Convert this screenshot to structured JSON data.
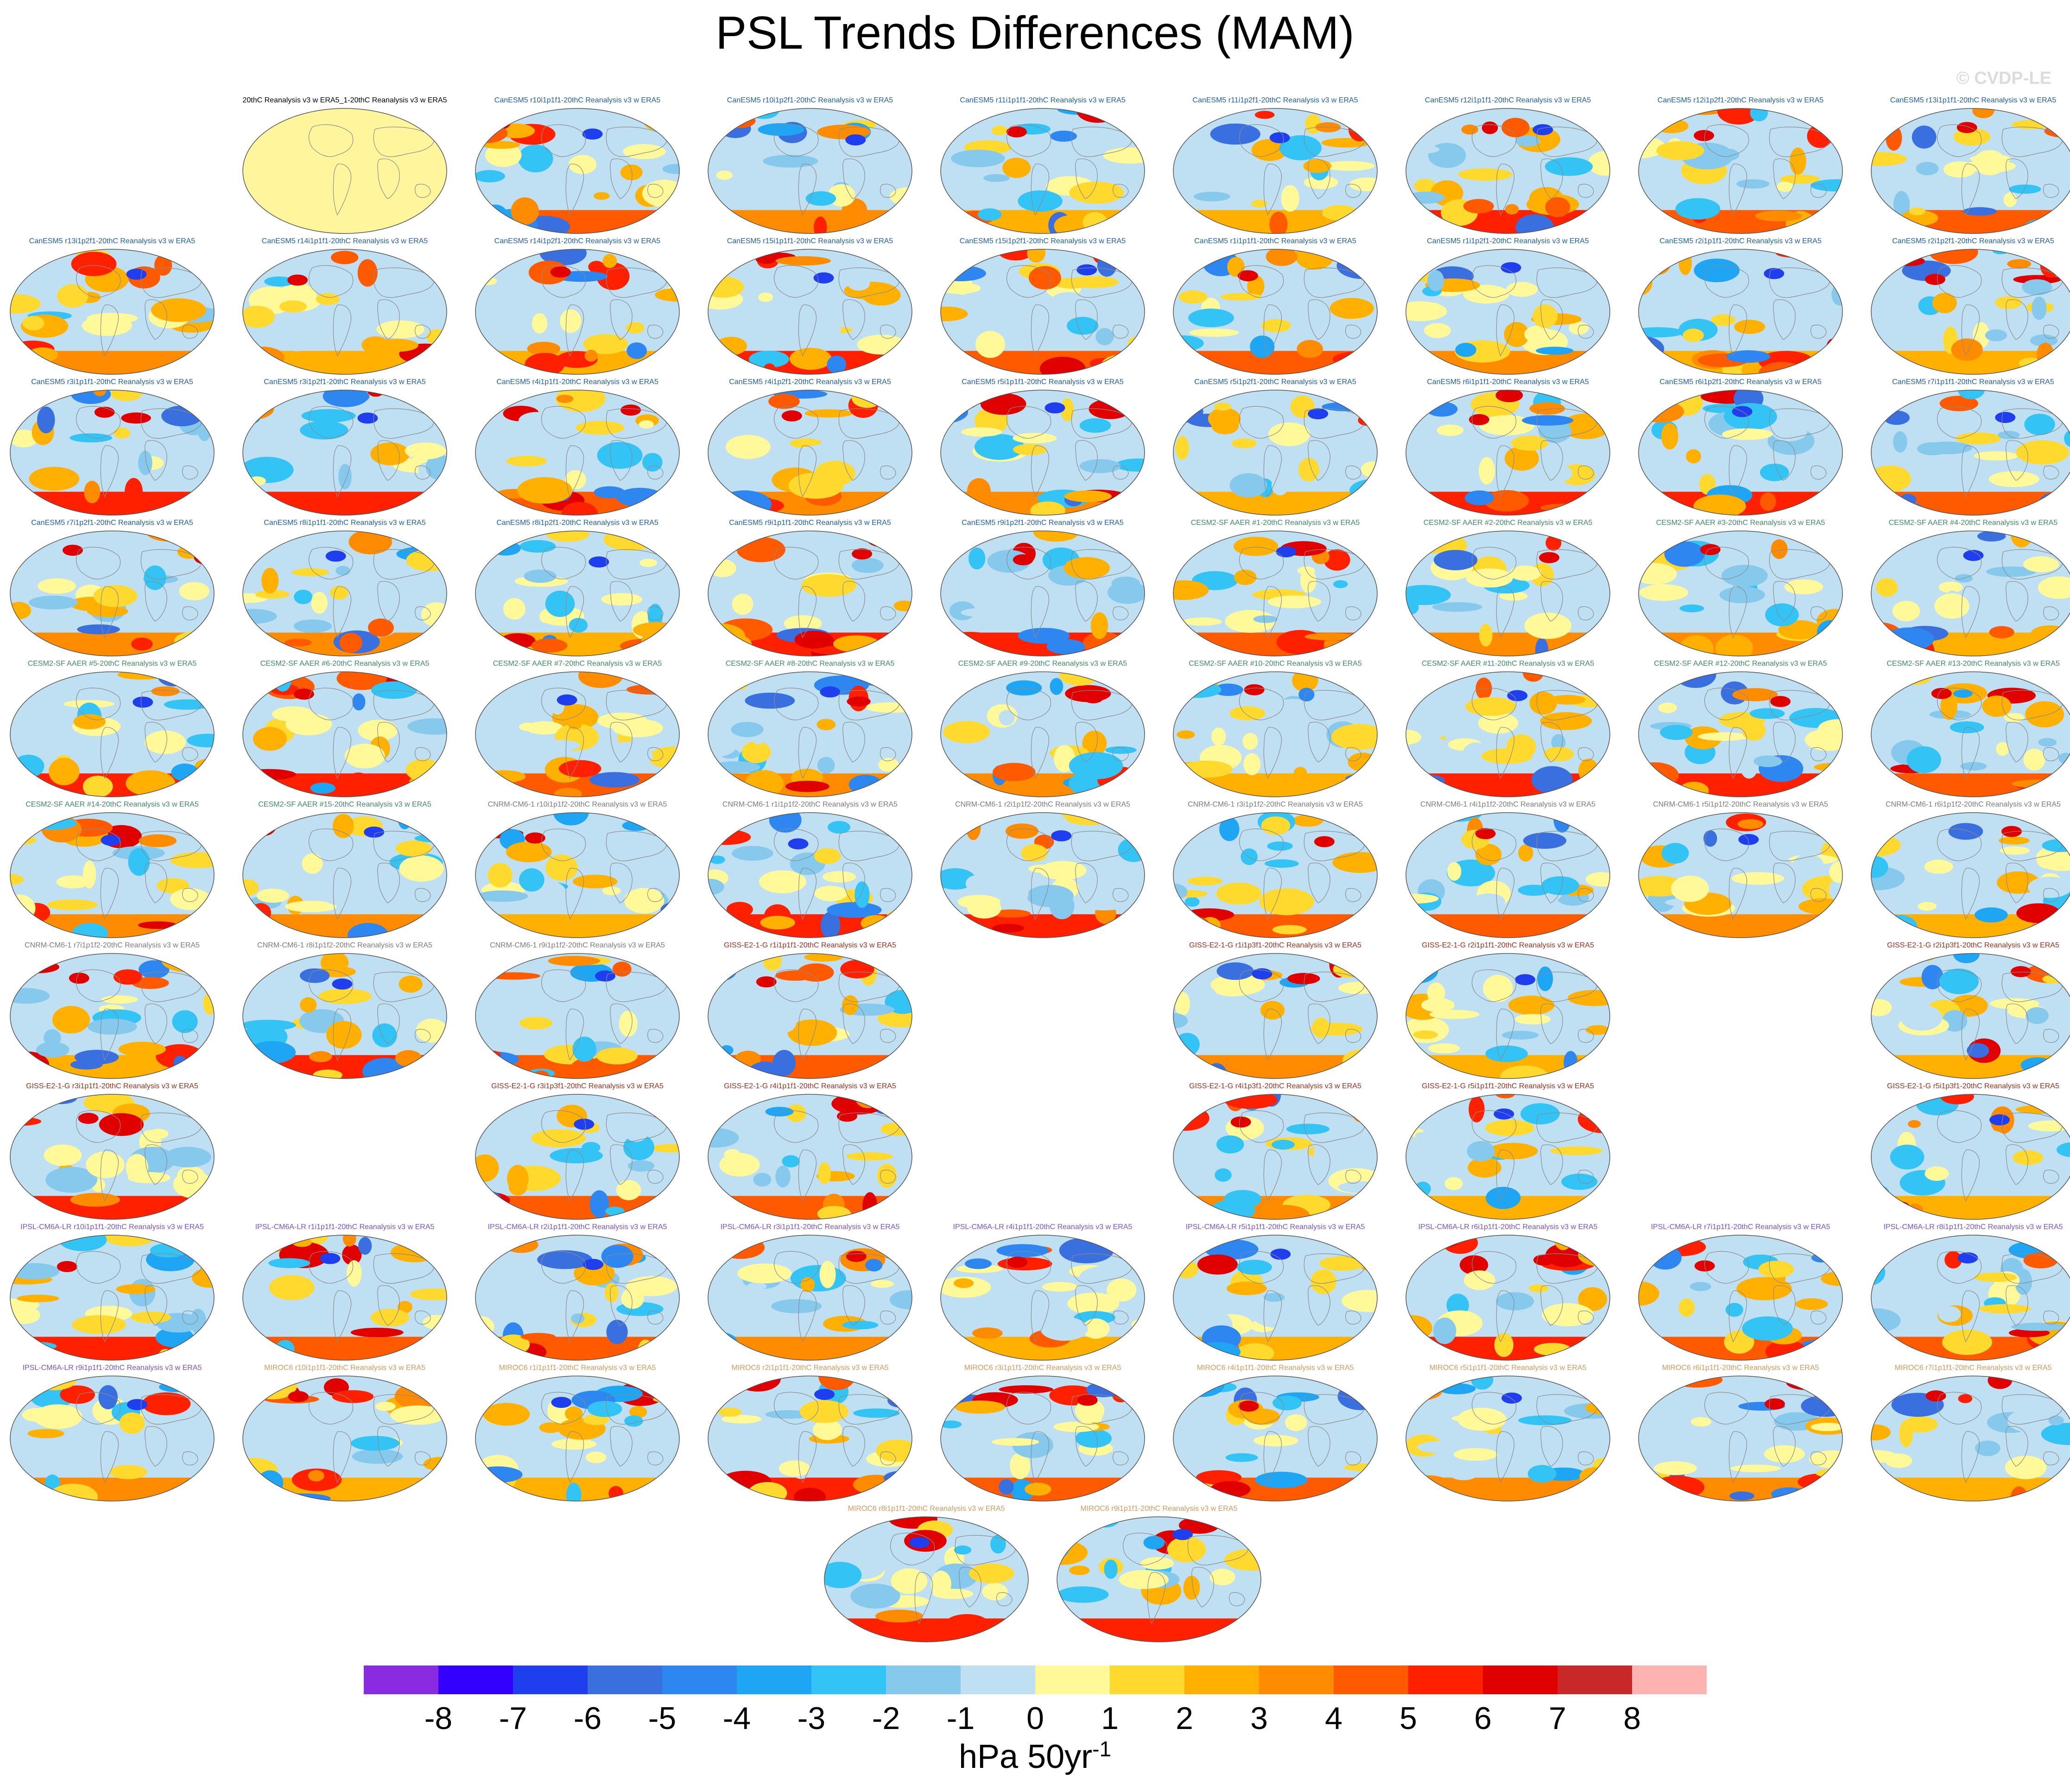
{
  "title": "PSL Trends Differences (MAM)",
  "credit": "© CVDP-LE",
  "units": {
    "base": "hPa 50yr",
    "exponent": "-1"
  },
  "colorbar": {
    "ticks": [
      "-8",
      "-7",
      "-6",
      "-5",
      "-4",
      "-3",
      "-2",
      "-1",
      "0",
      "1",
      "2",
      "3",
      "4",
      "5",
      "6",
      "7",
      "8"
    ],
    "colors": [
      "#8a2be2",
      "#3300ff",
      "#1f3fee",
      "#3a6fe0",
      "#2e86f0",
      "#1ea6f5",
      "#34c3f5",
      "#86c9ec",
      "#bfe0f2",
      "#fff99a",
      "#ffd92e",
      "#ffb000",
      "#ff8c00",
      "#ff5a00",
      "#ff2000",
      "#e00000",
      "#c82828",
      "#ffb2b2"
    ]
  },
  "panels": [
    {
      "label": "20thC Reanalysis v3 w ERA5_1-20thC Reanalysis v3 w ERA5",
      "row": 0,
      "col": 1,
      "group": "obs"
    },
    {
      "label": "CanESM5 r10i1p1f1-20thC Reanalysis v3 w ERA5",
      "row": 0,
      "col": 2,
      "group": "canesm",
      "seed": 1
    },
    {
      "label": "CanESM5 r10i1p2f1-20thC Reanalysis v3 w ERA5",
      "row": 0,
      "col": 3,
      "group": "canesm",
      "seed": 2
    },
    {
      "label": "CanESM5 r11i1p1f1-20thC Reanalysis v3 w ERA5",
      "row": 0,
      "col": 4,
      "group": "canesm",
      "seed": 3
    },
    {
      "label": "CanESM5 r11i1p2f1-20thC Reanalysis v3 w ERA5",
      "row": 0,
      "col": 5,
      "group": "canesm",
      "seed": 4
    },
    {
      "label": "CanESM5 r12i1p1f1-20thC Reanalysis v3 w ERA5",
      "row": 0,
      "col": 6,
      "group": "canesm",
      "seed": 5
    },
    {
      "label": "CanESM5 r12i1p2f1-20thC Reanalysis v3 w ERA5",
      "row": 0,
      "col": 7,
      "group": "canesm",
      "seed": 6
    },
    {
      "label": "CanESM5 r13i1p1f1-20thC Reanalysis v3 w ERA5",
      "row": 0,
      "col": 8,
      "group": "canesm",
      "seed": 7
    },
    {
      "label": "CanESM5 r13i1p2f1-20thC Reanalysis v3 w ERA5",
      "row": 1,
      "col": 0,
      "group": "canesm",
      "seed": 8
    },
    {
      "label": "CanESM5 r14i1p1f1-20thC Reanalysis v3 w ERA5",
      "row": 1,
      "col": 1,
      "group": "canesm",
      "seed": 9
    },
    {
      "label": "CanESM5 r14i1p2f1-20thC Reanalysis v3 w ERA5",
      "row": 1,
      "col": 2,
      "group": "canesm",
      "seed": 10
    },
    {
      "label": "CanESM5 r15i1p1f1-20thC Reanalysis v3 w ERA5",
      "row": 1,
      "col": 3,
      "group": "canesm",
      "seed": 11
    },
    {
      "label": "CanESM5 r15i1p2f1-20thC Reanalysis v3 w ERA5",
      "row": 1,
      "col": 4,
      "group": "canesm",
      "seed": 12
    },
    {
      "label": "CanESM5 r1i1p1f1-20thC Reanalysis v3 w ERA5",
      "row": 1,
      "col": 5,
      "group": "canesm",
      "seed": 13
    },
    {
      "label": "CanESM5 r1i1p2f1-20thC Reanalysis v3 w ERA5",
      "row": 1,
      "col": 6,
      "group": "canesm",
      "seed": 14
    },
    {
      "label": "CanESM5 r2i1p1f1-20thC Reanalysis v3 w ERA5",
      "row": 1,
      "col": 7,
      "group": "canesm",
      "seed": 15
    },
    {
      "label": "CanESM5 r2i1p2f1-20thC Reanalysis v3 w ERA5",
      "row": 1,
      "col": 8,
      "group": "canesm",
      "seed": 16
    },
    {
      "label": "CanESM5 r3i1p1f1-20thC Reanalysis v3 w ERA5",
      "row": 2,
      "col": 0,
      "group": "canesm",
      "seed": 17
    },
    {
      "label": "CanESM5 r3i1p2f1-20thC Reanalysis v3 w ERA5",
      "row": 2,
      "col": 1,
      "group": "canesm",
      "seed": 18
    },
    {
      "label": "CanESM5 r4i1p1f1-20thC Reanalysis v3 w ERA5",
      "row": 2,
      "col": 2,
      "group": "canesm",
      "seed": 19
    },
    {
      "label": "CanESM5 r4i1p2f1-20thC Reanalysis v3 w ERA5",
      "row": 2,
      "col": 3,
      "group": "canesm",
      "seed": 20
    },
    {
      "label": "CanESM5 r5i1p1f1-20thC Reanalysis v3 w ERA5",
      "row": 2,
      "col": 4,
      "group": "canesm",
      "seed": 21
    },
    {
      "label": "CanESM5 r5i1p2f1-20thC Reanalysis v3 w ERA5",
      "row": 2,
      "col": 5,
      "group": "canesm",
      "seed": 22
    },
    {
      "label": "CanESM5 r6i1p1f1-20thC Reanalysis v3 w ERA5",
      "row": 2,
      "col": 6,
      "group": "canesm",
      "seed": 23
    },
    {
      "label": "CanESM5 r6i1p2f1-20thC Reanalysis v3 w ERA5",
      "row": 2,
      "col": 7,
      "group": "canesm",
      "seed": 24
    },
    {
      "label": "CanESM5 r7i1p1f1-20thC Reanalysis v3 w ERA5",
      "row": 2,
      "col": 8,
      "group": "canesm",
      "seed": 25
    },
    {
      "label": "CanESM5 r7i1p2f1-20thC Reanalysis v3 w ERA5",
      "row": 3,
      "col": 0,
      "group": "canesm",
      "seed": 26
    },
    {
      "label": "CanESM5 r8i1p1f1-20thC Reanalysis v3 w ERA5",
      "row": 3,
      "col": 1,
      "group": "canesm",
      "seed": 27
    },
    {
      "label": "CanESM5 r8i1p2f1-20thC Reanalysis v3 w ERA5",
      "row": 3,
      "col": 2,
      "group": "canesm",
      "seed": 28
    },
    {
      "label": "CanESM5 r9i1p1f1-20thC Reanalysis v3 w ERA5",
      "row": 3,
      "col": 3,
      "group": "canesm",
      "seed": 29
    },
    {
      "label": "CanESM5 r9i1p2f1-20thC Reanalysis v3 w ERA5",
      "row": 3,
      "col": 4,
      "group": "canesm",
      "seed": 30
    },
    {
      "label": "CESM2-SF AAER #1-20thC Reanalysis v3 w ERA5",
      "row": 3,
      "col": 5,
      "group": "cesm",
      "seed": 31
    },
    {
      "label": "CESM2-SF AAER #2-20thC Reanalysis v3 w ERA5",
      "row": 3,
      "col": 6,
      "group": "cesm",
      "seed": 32
    },
    {
      "label": "CESM2-SF AAER #3-20thC Reanalysis v3 w ERA5",
      "row": 3,
      "col": 7,
      "group": "cesm",
      "seed": 33
    },
    {
      "label": "CESM2-SF AAER #4-20thC Reanalysis v3 w ERA5",
      "row": 3,
      "col": 8,
      "group": "cesm",
      "seed": 34
    },
    {
      "label": "CESM2-SF AAER #5-20thC Reanalysis v3 w ERA5",
      "row": 4,
      "col": 0,
      "group": "cesm",
      "seed": 35
    },
    {
      "label": "CESM2-SF AAER #6-20thC Reanalysis v3 w ERA5",
      "row": 4,
      "col": 1,
      "group": "cesm",
      "seed": 36
    },
    {
      "label": "CESM2-SF AAER #7-20thC Reanalysis v3 w ERA5",
      "row": 4,
      "col": 2,
      "group": "cesm",
      "seed": 37
    },
    {
      "label": "CESM2-SF AAER #8-20thC Reanalysis v3 w ERA5",
      "row": 4,
      "col": 3,
      "group": "cesm",
      "seed": 38
    },
    {
      "label": "CESM2-SF AAER #9-20thC Reanalysis v3 w ERA5",
      "row": 4,
      "col": 4,
      "group": "cesm",
      "seed": 39
    },
    {
      "label": "CESM2-SF AAER #10-20thC Reanalysis v3 w ERA5",
      "row": 4,
      "col": 5,
      "group": "cesm",
      "seed": 40
    },
    {
      "label": "CESM2-SF AAER #11-20thC Reanalysis v3 w ERA5",
      "row": 4,
      "col": 6,
      "group": "cesm",
      "seed": 41
    },
    {
      "label": "CESM2-SF AAER #12-20thC Reanalysis v3 w ERA5",
      "row": 4,
      "col": 7,
      "group": "cesm",
      "seed": 42
    },
    {
      "label": "CESM2-SF AAER #13-20thC Reanalysis v3 w ERA5",
      "row": 4,
      "col": 8,
      "group": "cesm",
      "seed": 43
    },
    {
      "label": "CESM2-SF AAER #14-20thC Reanalysis v3 w ERA5",
      "row": 5,
      "col": 0,
      "group": "cesm",
      "seed": 44
    },
    {
      "label": "CESM2-SF AAER #15-20thC Reanalysis v3 w ERA5",
      "row": 5,
      "col": 1,
      "group": "cesm",
      "seed": 45
    },
    {
      "label": "CNRM-CM6-1 r10i1p1f2-20thC Reanalysis v3 w ERA5",
      "row": 5,
      "col": 2,
      "group": "cnrm",
      "seed": 46
    },
    {
      "label": "CNRM-CM6-1 r1i1p1f2-20thC Reanalysis v3 w ERA5",
      "row": 5,
      "col": 3,
      "group": "cnrm",
      "seed": 47
    },
    {
      "label": "CNRM-CM6-1 r2i1p1f2-20thC Reanalysis v3 w ERA5",
      "row": 5,
      "col": 4,
      "group": "cnrm",
      "seed": 48
    },
    {
      "label": "CNRM-CM6-1 r3i1p1f2-20thC Reanalysis v3 w ERA5",
      "row": 5,
      "col": 5,
      "group": "cnrm",
      "seed": 49
    },
    {
      "label": "CNRM-CM6-1 r4i1p1f2-20thC Reanalysis v3 w ERA5",
      "row": 5,
      "col": 6,
      "group": "cnrm",
      "seed": 50
    },
    {
      "label": "CNRM-CM6-1 r5i1p1f2-20thC Reanalysis v3 w ERA5",
      "row": 5,
      "col": 7,
      "group": "cnrm",
      "seed": 51
    },
    {
      "label": "CNRM-CM6-1 r6i1p1f2-20thC Reanalysis v3 w ERA5",
      "row": 5,
      "col": 8,
      "group": "cnrm",
      "seed": 52
    },
    {
      "label": "CNRM-CM6-1 r7i1p1f2-20thC Reanalysis v3 w ERA5",
      "row": 6,
      "col": 0,
      "group": "cnrm",
      "seed": 53
    },
    {
      "label": "CNRM-CM6-1 r8i1p1f2-20thC Reanalysis v3 w ERA5",
      "row": 6,
      "col": 1,
      "group": "cnrm",
      "seed": 54
    },
    {
      "label": "CNRM-CM6-1 r9i1p1f2-20thC Reanalysis v3 w ERA5",
      "row": 6,
      "col": 2,
      "group": "cnrm",
      "seed": 55
    },
    {
      "label": "GISS-E2-1-G r1i1p1f1-20thC Reanalysis v3 w ERA5",
      "row": 6,
      "col": 3,
      "group": "giss",
      "seed": 56
    },
    {
      "label": "GISS-E2-1-G r1i1p3f1-20thC Reanalysis v3 w ERA5",
      "row": 6,
      "col": 5,
      "group": "giss",
      "seed": 57
    },
    {
      "label": "GISS-E2-1-G r2i1p1f1-20thC Reanalysis v3 w ERA5",
      "row": 6,
      "col": 6,
      "group": "giss",
      "seed": 58
    },
    {
      "label": "GISS-E2-1-G r2i1p3f1-20thC Reanalysis v3 w ERA5",
      "row": 6,
      "col": 8,
      "group": "giss",
      "seed": 59
    },
    {
      "label": "GISS-E2-1-G r3i1p1f1-20thC Reanalysis v3 w ERA5",
      "row": 7,
      "col": 0,
      "group": "giss",
      "seed": 60
    },
    {
      "label": "GISS-E2-1-G r3i1p3f1-20thC Reanalysis v3 w ERA5",
      "row": 7,
      "col": 2,
      "group": "giss",
      "seed": 61
    },
    {
      "label": "GISS-E2-1-G r4i1p1f1-20thC Reanalysis v3 w ERA5",
      "row": 7,
      "col": 3,
      "group": "giss",
      "seed": 62
    },
    {
      "label": "GISS-E2-1-G r4i1p3f1-20thC Reanalysis v3 w ERA5",
      "row": 7,
      "col": 5,
      "group": "giss",
      "seed": 63
    },
    {
      "label": "GISS-E2-1-G r5i1p1f1-20thC Reanalysis v3 w ERA5",
      "row": 7,
      "col": 6,
      "group": "giss",
      "seed": 64
    },
    {
      "label": "GISS-E2-1-G r5i1p3f1-20thC Reanalysis v3 w ERA5",
      "row": 7,
      "col": 8,
      "group": "giss",
      "seed": 65
    },
    {
      "label": "IPSL-CM6A-LR r10i1p1f1-20thC Reanalysis v3 w ERA5",
      "row": 8,
      "col": 0,
      "group": "ipsl",
      "seed": 66
    },
    {
      "label": "IPSL-CM6A-LR r1i1p1f1-20thC Reanalysis v3 w ERA5",
      "row": 8,
      "col": 1,
      "group": "ipsl",
      "seed": 67
    },
    {
      "label": "IPSL-CM6A-LR r2i1p1f1-20thC Reanalysis v3 w ERA5",
      "row": 8,
      "col": 2,
      "group": "ipsl",
      "seed": 68
    },
    {
      "label": "IPSL-CM6A-LR r3i1p1f1-20thC Reanalysis v3 w ERA5",
      "row": 8,
      "col": 3,
      "group": "ipsl",
      "seed": 69
    },
    {
      "label": "IPSL-CM6A-LR r4i1p1f1-20thC Reanalysis v3 w ERA5",
      "row": 8,
      "col": 4,
      "group": "ipsl",
      "seed": 70
    },
    {
      "label": "IPSL-CM6A-LR r5i1p1f1-20thC Reanalysis v3 w ERA5",
      "row": 8,
      "col": 5,
      "group": "ipsl",
      "seed": 71
    },
    {
      "label": "IPSL-CM6A-LR r6i1p1f1-20thC Reanalysis v3 w ERA5",
      "row": 8,
      "col": 6,
      "group": "ipsl",
      "seed": 72
    },
    {
      "label": "IPSL-CM6A-LR r7i1p1f1-20thC Reanalysis v3 w ERA5",
      "row": 8,
      "col": 7,
      "group": "ipsl",
      "seed": 73
    },
    {
      "label": "IPSL-CM6A-LR r8i1p1f1-20thC Reanalysis v3 w ERA5",
      "row": 8,
      "col": 8,
      "group": "ipsl",
      "seed": 74
    },
    {
      "label": "IPSL-CM6A-LR r9i1p1f1-20thC Reanalysis v3 w ERA5",
      "row": 9,
      "col": 0,
      "group": "ipsl",
      "seed": 75
    },
    {
      "label": "MIROC6 r10i1p1f1-20thC Reanalysis v3 w ERA5",
      "row": 9,
      "col": 1,
      "group": "miroc",
      "seed": 76
    },
    {
      "label": "MIROC6 r1i1p1f1-20thC Reanalysis v3 w ERA5",
      "row": 9,
      "col": 2,
      "group": "miroc",
      "seed": 77
    },
    {
      "label": "MIROC6 r2i1p1f1-20thC Reanalysis v3 w ERA5",
      "row": 9,
      "col": 3,
      "group": "miroc",
      "seed": 78
    },
    {
      "label": "MIROC6 r3i1p1f1-20thC Reanalysis v3 w ERA5",
      "row": 9,
      "col": 4,
      "group": "miroc",
      "seed": 79
    },
    {
      "label": "MIROC6 r4i1p1f1-20thC Reanalysis v3 w ERA5",
      "row": 9,
      "col": 5,
      "group": "miroc",
      "seed": 80
    },
    {
      "label": "MIROC6 r5i1p1f1-20thC Reanalysis v3 w ERA5",
      "row": 9,
      "col": 6,
      "group": "miroc",
      "seed": 81
    },
    {
      "label": "MIROC6 r6i1p1f1-20thC Reanalysis v3 w ERA5",
      "row": 9,
      "col": 7,
      "group": "miroc",
      "seed": 82
    },
    {
      "label": "MIROC6 r7i1p1f1-20thC Reanalysis v3 w ERA5",
      "row": 9,
      "col": 8,
      "group": "miroc",
      "seed": 83
    },
    {
      "label": "MIROC6 r8i1p1f1-20thC Reanalysis v3 w ERA5",
      "row": 10,
      "col": 3.5,
      "group": "miroc",
      "seed": 84
    },
    {
      "label": "MIROC6 r9i1p1f1-20thC Reanalysis v3 w ERA5",
      "row": 10,
      "col": 4.5,
      "group": "miroc",
      "seed": 85
    }
  ],
  "label_colors": {
    "obs": "#000000",
    "canesm": "#1f5fa8",
    "cesm": "#3f8a6a",
    "cnrm": "#7c7c7c",
    "giss": "#a0301c",
    "ipsl": "#7b52c8",
    "miroc": "#d49a5a"
  },
  "obs_fill": "#fff59d"
}
